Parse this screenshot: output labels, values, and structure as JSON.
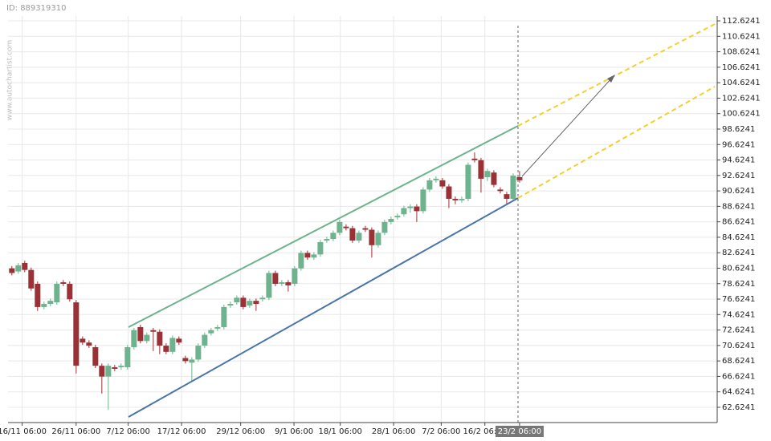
{
  "id_label": "ID: 889319310",
  "watermark": "www.autochartist.com",
  "chart_data": {
    "type": "candlestick",
    "up_color": "#6db38e",
    "down_color": "#9b3035",
    "open": [
      80.6,
      80.2,
      81.3,
      80.4,
      78.6,
      75.6,
      76.0,
      76.2,
      78.8,
      78.6,
      76.2,
      71.5,
      71.0,
      70.4,
      68.0,
      66.6,
      67.8,
      67.8,
      67.8,
      70.4,
      73.0,
      71.2,
      72.6,
      72.4,
      70.6,
      69.8,
      71.5,
      69.0,
      68.4,
      68.8,
      70.6,
      72.2,
      72.8,
      73.0,
      75.8,
      76.2,
      76.8,
      75.8,
      76.4,
      76.6,
      76.8,
      80.0,
      78.6,
      78.8,
      78.6,
      80.6,
      82.6,
      82.0,
      82.4,
      84.2,
      84.4,
      85.2,
      86.0,
      85.8,
      84.2,
      85.8,
      85.6,
      83.6,
      85.2,
      86.6,
      87.2,
      87.6,
      88.4,
      88.6,
      88.0,
      90.8,
      92.0,
      92.0,
      91.2,
      89.6,
      89.4,
      89.6,
      94.8,
      94.6,
      92.4,
      93.0,
      90.8,
      90.2,
      89.6,
      92.4
    ],
    "high": [
      80.9,
      81.3,
      81.6,
      80.7,
      78.9,
      76.3,
      76.7,
      78.9,
      79.1,
      78.9,
      76.5,
      71.8,
      71.3,
      70.7,
      68.3,
      68.3,
      68.1,
      68.3,
      70.7,
      72.9,
      73.3,
      72.3,
      72.9,
      72.7,
      70.9,
      71.9,
      71.8,
      69.3,
      69.1,
      70.9,
      72.3,
      72.9,
      73.3,
      75.9,
      76.3,
      77.1,
      77.1,
      76.7,
      76.7,
      77.1,
      80.3,
      80.3,
      79.1,
      79.1,
      80.9,
      82.9,
      82.9,
      82.7,
      84.3,
      84.7,
      85.5,
      86.9,
      86.3,
      86.1,
      85.5,
      86.1,
      85.9,
      85.5,
      86.9,
      87.3,
      87.7,
      88.7,
      88.9,
      88.9,
      91.1,
      92.3,
      92.5,
      92.3,
      91.5,
      89.9,
      89.9,
      94.3,
      95.6,
      94.9,
      93.5,
      93.3,
      91.1,
      90.5,
      92.9,
      93.2
    ],
    "low": [
      79.7,
      79.9,
      80.1,
      77.7,
      75.1,
      75.3,
      75.7,
      75.9,
      78.3,
      76.3,
      67.0,
      70.7,
      70.3,
      67.7,
      64.4,
      62.3,
      67.3,
      67.5,
      67.5,
      70.1,
      70.9,
      70.9,
      69.9,
      69.5,
      69.5,
      69.5,
      70.7,
      68.3,
      66.0,
      68.5,
      70.3,
      71.9,
      72.5,
      72.7,
      75.5,
      75.9,
      75.3,
      75.5,
      75.1,
      76.3,
      76.5,
      78.3,
      78.3,
      77.6,
      78.3,
      80.3,
      81.7,
      81.7,
      82.1,
      83.9,
      84.1,
      84.9,
      85.5,
      83.9,
      83.9,
      85.3,
      82.0,
      83.3,
      84.9,
      86.3,
      86.9,
      87.3,
      87.8,
      86.6,
      87.7,
      90.5,
      91.7,
      90.9,
      88.4,
      88.9,
      89.1,
      89.3,
      94.3,
      90.4,
      91.9,
      91.1,
      90.3,
      88.9,
      89.3,
      91.7
    ],
    "close": [
      80.0,
      81.0,
      80.4,
      78.0,
      75.6,
      76.0,
      76.4,
      78.6,
      78.6,
      76.6,
      68.0,
      71.0,
      70.6,
      68.0,
      66.6,
      68.0,
      67.6,
      68.0,
      70.4,
      72.6,
      71.2,
      72.0,
      72.4,
      70.6,
      69.8,
      71.6,
      71.0,
      68.6,
      68.8,
      70.6,
      72.0,
      72.6,
      73.0,
      75.6,
      76.0,
      76.8,
      75.6,
      76.4,
      76.0,
      76.8,
      80.0,
      78.6,
      78.8,
      78.4,
      80.6,
      82.6,
      82.0,
      82.4,
      84.0,
      84.4,
      85.2,
      86.6,
      85.8,
      84.2,
      85.2,
      85.6,
      83.6,
      85.2,
      86.6,
      87.0,
      87.4,
      88.4,
      88.6,
      88.0,
      90.8,
      92.0,
      92.2,
      91.2,
      89.6,
      89.4,
      89.6,
      94.0,
      94.6,
      92.2,
      93.2,
      91.4,
      90.6,
      89.6,
      92.6,
      92.0
    ],
    "xlim": [
      -0.6,
      109.75
    ],
    "xticks": [
      {
        "value": 1.6,
        "label": "16/11 06:00"
      },
      {
        "value": 10,
        "label": "26/11 06:00"
      },
      {
        "value": 18.1,
        "label": "7/12 06:00"
      },
      {
        "value": 26.4,
        "label": "17/12 06:00"
      },
      {
        "value": 35.6,
        "label": "29/12 06:00"
      },
      {
        "value": 43.9,
        "label": "9/1 06:00"
      },
      {
        "value": 51.1,
        "label": "18/1 06:00"
      },
      {
        "value": 59.4,
        "label": "28/1 06:00"
      },
      {
        "value": 66.8,
        "label": "7/2 06:00"
      },
      {
        "value": 73.6,
        "label": "16/2 06:00"
      },
      {
        "value": 79,
        "label": "23/2 06:00"
      }
    ],
    "ylim": [
      60.65,
      113.25
    ],
    "yticks": [
      62.6241,
      64.6241,
      66.6241,
      68.6241,
      70.6241,
      72.6241,
      74.6241,
      76.6241,
      78.6241,
      80.6241,
      82.6241,
      84.6241,
      86.6241,
      88.6241,
      90.6241,
      92.6241,
      94.6241,
      96.6241,
      98.6241,
      100.6241,
      102.6241,
      104.6241,
      106.6241,
      108.6241,
      110.6241,
      112.6241
    ],
    "grid": true
  }
}
